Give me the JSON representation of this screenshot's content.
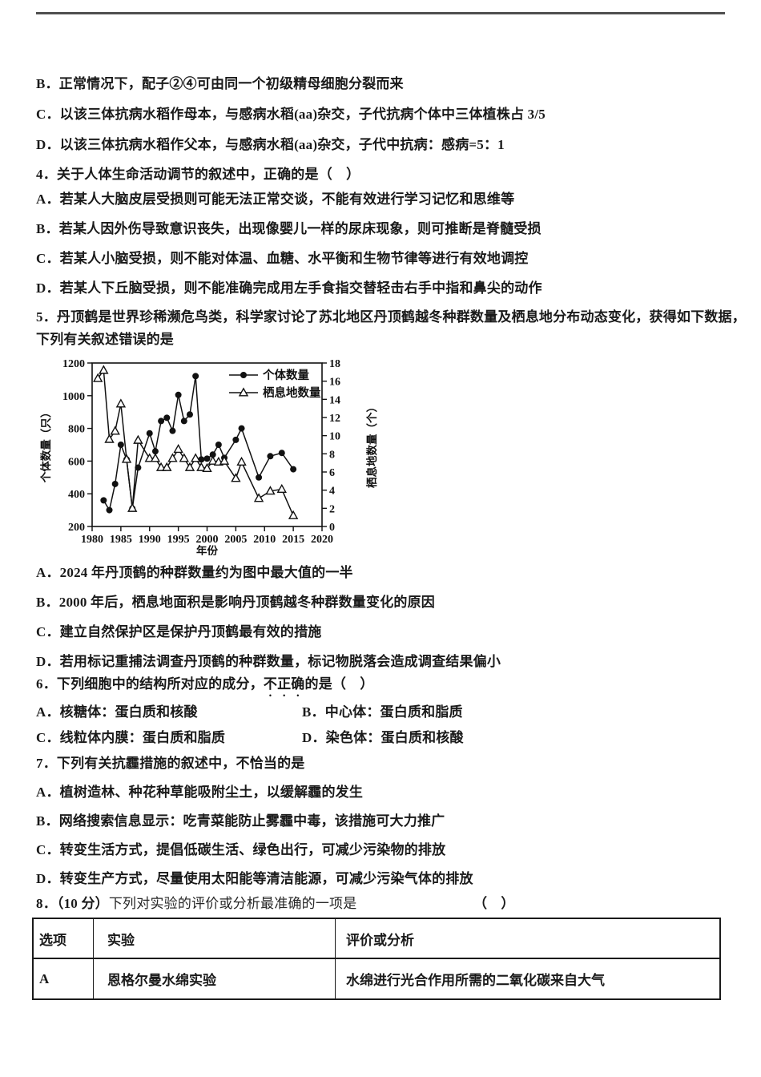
{
  "colors": {
    "text": "#1a1a1a",
    "rule": "#4f4f4f",
    "chart_ink": "#111111",
    "table_border": "#1a1a1a"
  },
  "q3": {
    "options": [
      "B．正常情况下，配子②④可由同一个初级精母细胞分裂而来",
      "C．以该三体抗病水稻作母本，与感病水稻(aa)杂交，子代抗病个体中三体植株占 3/5",
      "D．以该三体抗病水稻作父本，与感病水稻(aa)杂交，子代中抗病：感病=5：1"
    ]
  },
  "q4": {
    "stem": "4．关于人体生命活动调节的叙述中，正确的是（　）",
    "options": [
      "A．若某人大脑皮层受损则可能无法正常交谈，不能有效进行学习记忆和思维等",
      "B．若某人因外伤导致意识丧失，出现像婴儿一样的尿床现象，则可推断是脊髓受损",
      "C．若某人小脑受损，则不能对体温、血糖、水平衡和生物节律等进行有效地调控",
      "D．若某人下丘脑受损，则不能准确完成用左手食指交替轻击右手中指和鼻尖的动作"
    ]
  },
  "q5": {
    "stem_line1": "5．丹顶鹤是世界珍稀濒危鸟类，科学家讨论了苏北地区丹顶鹤越冬种群数量及栖息地分布动态变化，获得如下数据，",
    "stem_line2": "下列有关叙述错误的是",
    "options": [
      "A．2024 年丹顶鹤的种群数量约为图中最大值的一半",
      "B．2000 年后，栖息地面积是影响丹顶鹤越冬种群数量变化的原因",
      "C．建立自然保护区是保护丹顶鹤最有效的措施",
      "D．若用标记重捕法调查丹顶鹤的种群数量，标记物脱落会造成调查结果偏小"
    ]
  },
  "q6": {
    "stem_pre": "6．下列细胞中的结构所对应的成分，",
    "stem_emphasis": "不正确",
    "stem_post": "的是（　）",
    "options": [
      "A．核糖体：蛋白质和核酸",
      "B．中心体：蛋白质和脂质",
      "C．线粒体内膜：蛋白质和脂质",
      "D．染色体：蛋白质和核酸"
    ]
  },
  "q7": {
    "stem": "7．下列有关抗霾措施的叙述中，不恰当的是",
    "options": [
      "A．植树造林、种花种草能吸附尘土，以缓解霾的发生",
      "B．网络搜索信息显示：吃青菜能防止雾霾中毒，该措施可大力推广",
      "C．转变生活方式，提倡低碳生活、绿色出行，可减少污染物的排放",
      "D．转变生产方式，尽量使用太阳能等清洁能源，可减少污染气体的排放"
    ]
  },
  "q8": {
    "stem_prefix": "8．（10 分）",
    "stem_text": "下列对实验的评价或分析最准确的一项是",
    "bracket": "（　）",
    "table": {
      "headers": [
        "选项",
        "实验",
        "评价或分析"
      ],
      "rows": [
        [
          "A",
          "恩格尔曼水绵实验",
          "水绵进行光合作用所需的二氧化碳来自大气"
        ]
      ]
    }
  },
  "chart_data": {
    "type": "line",
    "title": "",
    "xlabel": "年份",
    "ylabel_left": "个体数量（只）",
    "ylabel_right": "栖息地数量（个）",
    "xlim": [
      1980,
      2020
    ],
    "ylim_left": [
      200,
      1200
    ],
    "ylim_right": [
      0,
      18
    ],
    "x_ticks": [
      1980,
      1985,
      1990,
      1995,
      2000,
      2005,
      2010,
      2015,
      2020
    ],
    "y_left_ticks": [
      200,
      400,
      600,
      800,
      1000,
      1200
    ],
    "y_right_ticks": [
      0,
      2,
      4,
      6,
      8,
      10,
      12,
      14,
      16,
      18
    ],
    "grid": false,
    "legend_position": "top-right-inside",
    "series": [
      {
        "name": "个体数量",
        "axis": "left",
        "marker": "filled-circle",
        "points": [
          [
            1982,
            360
          ],
          [
            1983,
            300
          ],
          [
            1984,
            460
          ],
          [
            1985,
            700
          ],
          [
            1986,
            610
          ],
          [
            1987,
            310
          ],
          [
            1988,
            560
          ],
          [
            1990,
            770
          ],
          [
            1991,
            660
          ],
          [
            1992,
            845
          ],
          [
            1993,
            865
          ],
          [
            1994,
            785
          ],
          [
            1995,
            1005
          ],
          [
            1996,
            845
          ],
          [
            1997,
            885
          ],
          [
            1998,
            1120
          ],
          [
            1999,
            610
          ],
          [
            2000,
            615
          ],
          [
            2001,
            640
          ],
          [
            2002,
            700
          ],
          [
            2003,
            620
          ],
          [
            2005,
            730
          ],
          [
            2006,
            800
          ],
          [
            2009,
            500
          ],
          [
            2011,
            630
          ],
          [
            2013,
            650
          ],
          [
            2015,
            550
          ]
        ]
      },
      {
        "name": "栖息地数量",
        "axis": "right",
        "marker": "open-triangle",
        "points": [
          [
            1981,
            16.3
          ],
          [
            1982,
            17.2
          ],
          [
            1983,
            9.6
          ],
          [
            1984,
            10.5
          ],
          [
            1985,
            13.5
          ],
          [
            1986,
            7.4
          ],
          [
            1987,
            2
          ],
          [
            1988,
            9.5
          ],
          [
            1990,
            7.5
          ],
          [
            1991,
            7.5
          ],
          [
            1992,
            6.5
          ],
          [
            1993,
            6.5
          ],
          [
            1994,
            7.5
          ],
          [
            1995,
            8.5
          ],
          [
            1996,
            7.5
          ],
          [
            1997,
            6.5
          ],
          [
            1998,
            7.5
          ],
          [
            1999,
            6.5
          ],
          [
            2000,
            6.4
          ],
          [
            2001,
            7.2
          ],
          [
            2002,
            7.1
          ],
          [
            2003,
            7.2
          ],
          [
            2005,
            5.3
          ],
          [
            2006,
            7.1
          ],
          [
            2009,
            3.1
          ],
          [
            2011,
            3.9
          ],
          [
            2013,
            4.1
          ],
          [
            2015,
            1.2
          ]
        ]
      }
    ]
  }
}
